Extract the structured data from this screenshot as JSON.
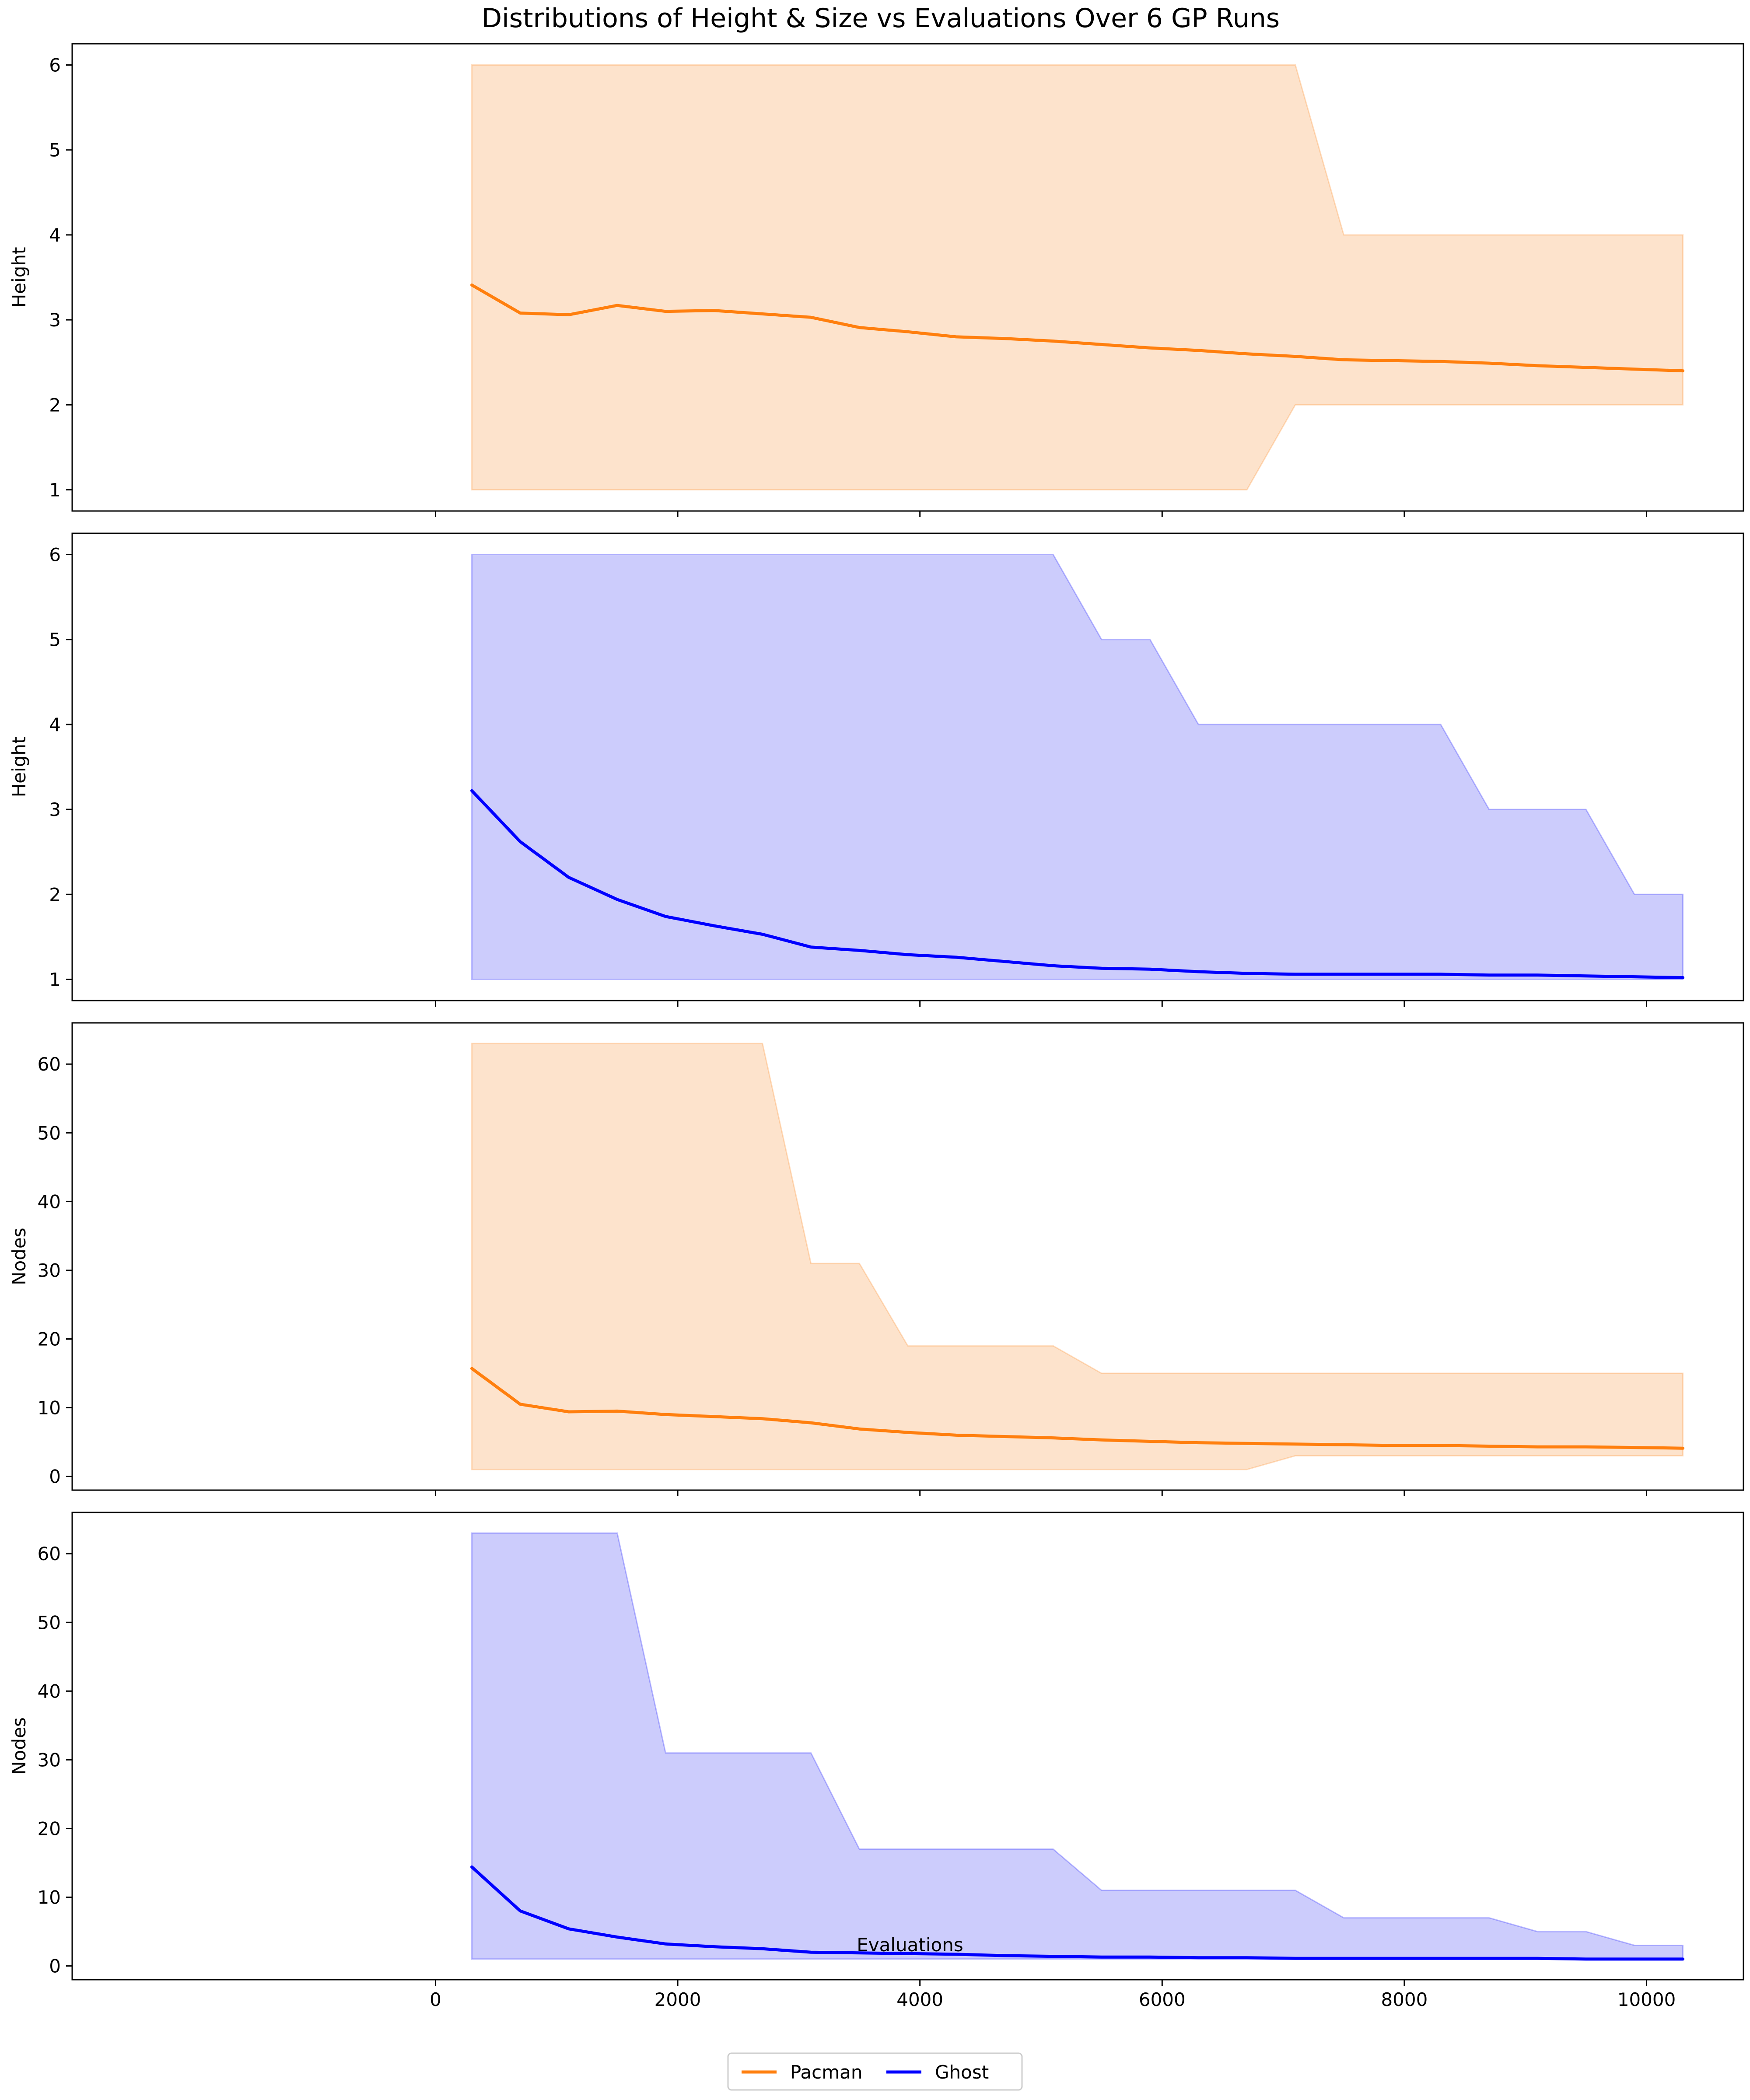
{
  "title": "Distributions of Height & Size vs Evaluations Over 6 GP Runs",
  "xlabel": "Evaluations",
  "legend": {
    "placement": "bottom-center",
    "entries": [
      {
        "label": "Pacman",
        "color": "#ff7f0e"
      },
      {
        "label": "Ghost",
        "color": "#0000ff"
      }
    ]
  },
  "colors": {
    "pacman_line": "#ff7f0e",
    "pacman_fill": "#fde3cc",
    "ghost_line": "#0000ff",
    "ghost_fill": "#ccccfc"
  },
  "chart_data": [
    {
      "type": "area",
      "ylabel": "Height",
      "series_name": "Pacman",
      "color_key": "pacman",
      "xlim": [
        -3000,
        10800
      ],
      "ylim": [
        0.75,
        6.25
      ],
      "xticks": [
        0,
        2000,
        4000,
        6000,
        8000,
        10000
      ],
      "yticks": [
        1,
        2,
        3,
        4,
        5,
        6
      ],
      "show_xtick_labels": false,
      "x": [
        300,
        700,
        1100,
        1500,
        1900,
        2300,
        2700,
        3100,
        3500,
        3900,
        4300,
        4700,
        5100,
        5500,
        5900,
        6300,
        6700,
        7100,
        7500,
        7900,
        8300,
        8700,
        9100,
        9500,
        9900,
        10300
      ],
      "mean": [
        3.41,
        3.08,
        3.06,
        3.17,
        3.1,
        3.11,
        3.07,
        3.03,
        2.91,
        2.86,
        2.8,
        2.78,
        2.75,
        2.71,
        2.67,
        2.64,
        2.6,
        2.57,
        2.53,
        2.52,
        2.51,
        2.49,
        2.46,
        2.44,
        2.42,
        2.4
      ],
      "max": [
        6,
        6,
        6,
        6,
        6,
        6,
        6,
        6,
        6,
        6,
        6,
        6,
        6,
        6,
        6,
        6,
        6,
        6,
        4,
        4,
        4,
        4,
        4,
        4,
        4,
        4
      ],
      "min": [
        1,
        1,
        1,
        1,
        1,
        1,
        1,
        1,
        1,
        1,
        1,
        1,
        1,
        1,
        1,
        1,
        1,
        2,
        2,
        2,
        2,
        2,
        2,
        2,
        2,
        2
      ]
    },
    {
      "type": "area",
      "ylabel": "Height",
      "series_name": "Ghost",
      "color_key": "ghost",
      "xlim": [
        -3000,
        10800
      ],
      "ylim": [
        0.75,
        6.25
      ],
      "xticks": [
        0,
        2000,
        4000,
        6000,
        8000,
        10000
      ],
      "yticks": [
        1,
        2,
        3,
        4,
        5,
        6
      ],
      "show_xtick_labels": false,
      "x": [
        300,
        700,
        1100,
        1500,
        1900,
        2300,
        2700,
        3100,
        3500,
        3900,
        4300,
        4700,
        5100,
        5500,
        5900,
        6300,
        6700,
        7100,
        7500,
        7900,
        8300,
        8700,
        9100,
        9500,
        9900,
        10300
      ],
      "mean": [
        3.22,
        2.62,
        2.2,
        1.94,
        1.74,
        1.63,
        1.53,
        1.38,
        1.34,
        1.29,
        1.26,
        1.21,
        1.16,
        1.13,
        1.12,
        1.09,
        1.07,
        1.06,
        1.06,
        1.06,
        1.06,
        1.05,
        1.05,
        1.04,
        1.03,
        1.02
      ],
      "max": [
        6,
        6,
        6,
        6,
        6,
        6,
        6,
        6,
        6,
        6,
        6,
        6,
        6,
        5,
        5,
        4,
        4,
        4,
        4,
        4,
        4,
        3,
        3,
        3,
        2,
        2
      ],
      "min": [
        1,
        1,
        1,
        1,
        1,
        1,
        1,
        1,
        1,
        1,
        1,
        1,
        1,
        1,
        1,
        1,
        1,
        1,
        1,
        1,
        1,
        1,
        1,
        1,
        1,
        1
      ]
    },
    {
      "type": "area",
      "ylabel": "Nodes",
      "series_name": "Pacman",
      "color_key": "pacman",
      "xlim": [
        -3000,
        10800
      ],
      "ylim": [
        -2,
        66
      ],
      "xticks": [
        0,
        2000,
        4000,
        6000,
        8000,
        10000
      ],
      "yticks": [
        0,
        10,
        20,
        30,
        40,
        50,
        60
      ],
      "show_xtick_labels": false,
      "x": [
        300,
        700,
        1100,
        1500,
        1900,
        2300,
        2700,
        3100,
        3500,
        3900,
        4300,
        4700,
        5100,
        5500,
        5900,
        6300,
        6700,
        7100,
        7500,
        7900,
        8300,
        8700,
        9100,
        9500,
        9900,
        10300
      ],
      "mean": [
        15.7,
        10.5,
        9.4,
        9.5,
        9.0,
        8.7,
        8.4,
        7.8,
        6.9,
        6.4,
        6.0,
        5.8,
        5.6,
        5.3,
        5.1,
        4.9,
        4.8,
        4.7,
        4.6,
        4.5,
        4.5,
        4.4,
        4.3,
        4.3,
        4.2,
        4.1
      ],
      "max": [
        63,
        63,
        63,
        63,
        63,
        63,
        63,
        31,
        31,
        19,
        19,
        19,
        19,
        15,
        15,
        15,
        15,
        15,
        15,
        15,
        15,
        15,
        15,
        15,
        15,
        15
      ],
      "min": [
        1,
        1,
        1,
        1,
        1,
        1,
        1,
        1,
        1,
        1,
        1,
        1,
        1,
        1,
        1,
        1,
        1,
        3,
        3,
        3,
        3,
        3,
        3,
        3,
        3,
        3
      ]
    },
    {
      "type": "area",
      "ylabel": "Nodes",
      "series_name": "Ghost",
      "color_key": "ghost",
      "xlim": [
        -3000,
        10800
      ],
      "ylim": [
        -2,
        66
      ],
      "xticks": [
        0,
        2000,
        4000,
        6000,
        8000,
        10000
      ],
      "yticks": [
        0,
        10,
        20,
        30,
        40,
        50,
        60
      ],
      "show_xtick_labels": true,
      "x": [
        300,
        700,
        1100,
        1500,
        1900,
        2300,
        2700,
        3100,
        3500,
        3900,
        4300,
        4700,
        5100,
        5500,
        5900,
        6300,
        6700,
        7100,
        7500,
        7900,
        8300,
        8700,
        9100,
        9500,
        9900,
        10300
      ],
      "mean": [
        14.4,
        8.0,
        5.4,
        4.2,
        3.2,
        2.8,
        2.5,
        2.0,
        1.9,
        1.8,
        1.7,
        1.5,
        1.4,
        1.3,
        1.3,
        1.2,
        1.2,
        1.1,
        1.1,
        1.1,
        1.1,
        1.1,
        1.1,
        1.0,
        1.0,
        1.0
      ],
      "max": [
        63,
        63,
        63,
        63,
        31,
        31,
        31,
        31,
        17,
        17,
        17,
        17,
        17,
        11,
        11,
        11,
        11,
        11,
        7,
        7,
        7,
        7,
        5,
        5,
        3,
        3
      ],
      "min": [
        1,
        1,
        1,
        1,
        1,
        1,
        1,
        1,
        1,
        1,
        1,
        1,
        1,
        1,
        1,
        1,
        1,
        1,
        1,
        1,
        1,
        1,
        1,
        1,
        1,
        1
      ]
    }
  ]
}
